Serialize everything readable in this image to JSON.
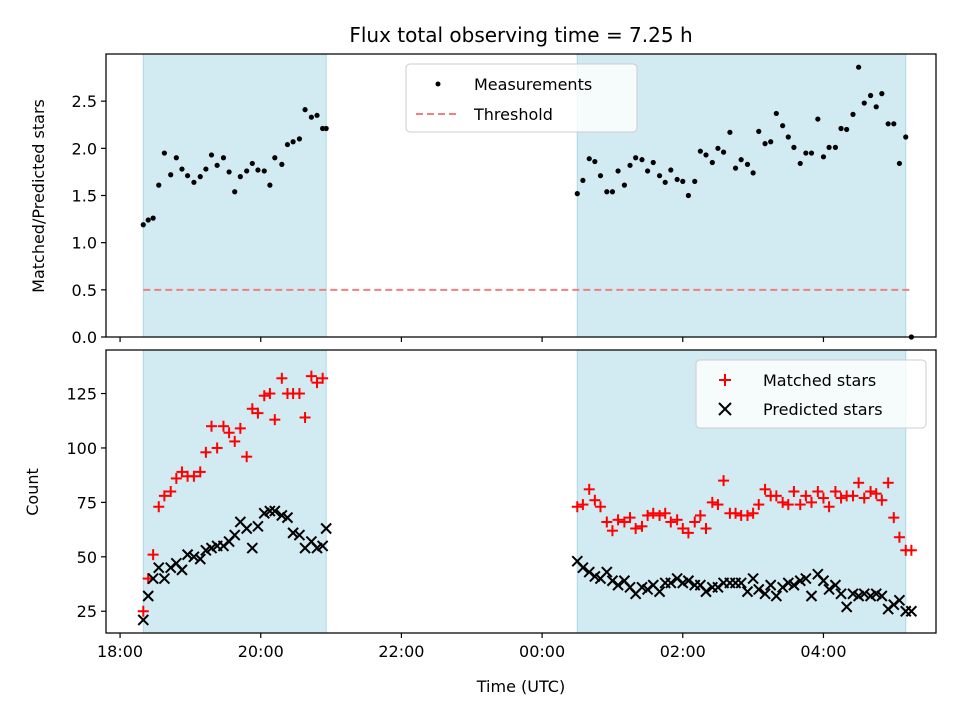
{
  "figure": {
    "title": "Flux total observing time = 7.25 h",
    "xlabel": "Time (UTC)"
  },
  "colors": {
    "shade": "#add8e6",
    "matched": "#ff0000",
    "predicted": "#000000",
    "threshold": "#f08080",
    "measurement": "#000000"
  },
  "x_ticks": [
    {
      "value": 0,
      "label": "18:00"
    },
    {
      "value": 2,
      "label": "20:00"
    },
    {
      "value": 4,
      "label": "22:00"
    },
    {
      "value": 6,
      "label": "00:00"
    },
    {
      "value": 8,
      "label": "02:00"
    },
    {
      "value": 10,
      "label": "04:00"
    }
  ],
  "chart_data": [
    {
      "type": "scatter",
      "panel": "top",
      "title": "Flux total observing time = 7.25 h",
      "xlabel": "",
      "ylabel": "Matched/Predicted stars",
      "x_unit": "hours since 18:00 UTC",
      "xlim": [
        -0.2,
        11.6
      ],
      "ylim": [
        0,
        3.0
      ],
      "yticks": [
        0.0,
        0.5,
        1.0,
        1.5,
        2.0,
        2.5
      ],
      "ytick_labels": [
        "0.0",
        "0.5",
        "1.0",
        "1.5",
        "2.0",
        "2.5"
      ],
      "grid": false,
      "legend_position": "top-center",
      "shaded_intervals": [
        [
          0.33,
          2.93
        ],
        [
          6.5,
          11.17
        ]
      ],
      "series": [
        {
          "name": "Measurements",
          "style": "dots",
          "x": [
            0.33,
            0.4,
            0.47,
            0.55,
            0.63,
            0.72,
            0.8,
            0.88,
            0.96,
            1.05,
            1.14,
            1.22,
            1.3,
            1.38,
            1.47,
            1.55,
            1.63,
            1.71,
            1.8,
            1.88,
            1.96,
            2.05,
            2.13,
            2.2,
            2.3,
            2.38,
            2.46,
            2.55,
            2.63,
            2.72,
            2.8,
            2.88,
            2.93,
            6.5,
            6.58,
            6.67,
            6.75,
            6.83,
            6.92,
            7.0,
            7.08,
            7.17,
            7.25,
            7.33,
            7.42,
            7.5,
            7.58,
            7.67,
            7.75,
            7.83,
            7.92,
            8.0,
            8.08,
            8.17,
            8.25,
            8.33,
            8.42,
            8.5,
            8.58,
            8.67,
            8.75,
            8.83,
            8.92,
            9.0,
            9.08,
            9.17,
            9.25,
            9.33,
            9.42,
            9.5,
            9.58,
            9.67,
            9.75,
            9.83,
            9.92,
            10.0,
            10.08,
            10.17,
            10.25,
            10.33,
            10.42,
            10.5,
            10.58,
            10.67,
            10.75,
            10.83,
            10.92,
            11.0,
            11.08,
            11.17,
            11.25
          ],
          "y": [
            1.19,
            1.24,
            1.26,
            1.61,
            1.95,
            1.72,
            1.9,
            1.78,
            1.71,
            1.64,
            1.7,
            1.78,
            1.93,
            1.82,
            1.9,
            1.75,
            1.54,
            1.7,
            1.76,
            1.84,
            1.77,
            1.76,
            1.61,
            1.9,
            1.83,
            2.04,
            2.07,
            2.1,
            2.41,
            2.33,
            2.35,
            2.21,
            2.21,
            1.52,
            1.66,
            1.89,
            1.86,
            1.71,
            1.54,
            1.54,
            1.76,
            1.61,
            1.82,
            1.9,
            1.88,
            1.76,
            1.85,
            1.71,
            1.64,
            1.77,
            1.67,
            1.65,
            1.5,
            1.65,
            1.97,
            1.93,
            1.85,
            2.0,
            1.96,
            2.17,
            1.79,
            1.88,
            1.83,
            1.74,
            2.18,
            2.05,
            2.07,
            2.37,
            2.24,
            2.12,
            2.01,
            1.84,
            1.95,
            1.95,
            2.31,
            1.91,
            2.01,
            2.01,
            2.21,
            2.2,
            2.36,
            2.86,
            2.48,
            2.56,
            2.44,
            2.58,
            2.26,
            2.26,
            1.84,
            2.12,
            0.0
          ]
        },
        {
          "name": "Threshold",
          "style": "dashed-line",
          "x": [
            0.33,
            11.25
          ],
          "y": [
            0.5,
            0.5
          ]
        }
      ]
    },
    {
      "type": "scatter",
      "panel": "bottom",
      "xlabel": "Time (UTC)",
      "ylabel": "Count",
      "x_unit": "hours since 18:00 UTC",
      "xlim": [
        -0.2,
        11.6
      ],
      "ylim": [
        15,
        145
      ],
      "yticks": [
        25,
        50,
        75,
        100,
        125
      ],
      "ytick_labels": [
        "25",
        "50",
        "75",
        "100",
        "125"
      ],
      "grid": false,
      "legend_position": "top-right",
      "shaded_intervals": [
        [
          0.33,
          2.93
        ],
        [
          6.5,
          11.17
        ]
      ],
      "series": [
        {
          "name": "Matched stars",
          "marker": "plus",
          "x": [
            0.33,
            0.4,
            0.47,
            0.55,
            0.63,
            0.72,
            0.8,
            0.88,
            0.96,
            1.05,
            1.14,
            1.22,
            1.3,
            1.38,
            1.47,
            1.55,
            1.63,
            1.71,
            1.8,
            1.88,
            1.96,
            2.05,
            2.13,
            2.2,
            2.3,
            2.38,
            2.46,
            2.55,
            2.63,
            2.72,
            2.8,
            2.88,
            6.5,
            6.58,
            6.67,
            6.75,
            6.83,
            6.92,
            7.0,
            7.08,
            7.17,
            7.25,
            7.33,
            7.42,
            7.5,
            7.58,
            7.67,
            7.75,
            7.83,
            7.92,
            8.0,
            8.08,
            8.17,
            8.25,
            8.33,
            8.42,
            8.5,
            8.58,
            8.67,
            8.75,
            8.83,
            8.92,
            9.0,
            9.08,
            9.17,
            9.25,
            9.33,
            9.42,
            9.5,
            9.58,
            9.67,
            9.75,
            9.83,
            9.92,
            10.0,
            10.08,
            10.17,
            10.25,
            10.33,
            10.42,
            10.5,
            10.58,
            10.67,
            10.75,
            10.83,
            10.92,
            11.0,
            11.08,
            11.17,
            11.25
          ],
          "y": [
            25,
            40,
            51,
            73,
            78,
            80,
            86,
            89,
            87,
            87,
            89,
            98,
            110,
            100,
            110,
            107,
            103,
            109,
            96,
            118,
            116,
            124,
            125,
            113,
            132,
            125,
            125,
            125,
            114,
            133,
            130,
            132,
            73,
            74,
            81,
            76,
            73,
            66,
            62,
            67,
            66,
            68,
            63,
            64,
            69,
            70,
            69,
            70,
            66,
            67,
            63,
            61,
            66,
            69,
            63,
            75,
            74,
            85,
            70,
            70,
            69,
            69,
            70,
            74,
            81,
            78,
            78,
            75,
            74,
            80,
            74,
            78,
            75,
            80,
            77,
            73,
            80,
            77,
            78,
            78,
            84,
            77,
            80,
            79,
            76,
            84,
            68,
            59,
            53,
            53
          ]
        },
        {
          "name": "Predicted stars",
          "marker": "cross",
          "x": [
            0.33,
            0.4,
            0.47,
            0.55,
            0.63,
            0.72,
            0.8,
            0.88,
            0.96,
            1.05,
            1.14,
            1.22,
            1.3,
            1.38,
            1.47,
            1.55,
            1.63,
            1.71,
            1.8,
            1.88,
            1.96,
            2.05,
            2.13,
            2.2,
            2.3,
            2.38,
            2.46,
            2.55,
            2.63,
            2.72,
            2.8,
            2.88,
            2.93,
            6.5,
            6.58,
            6.67,
            6.75,
            6.83,
            6.92,
            7.0,
            7.08,
            7.17,
            7.25,
            7.33,
            7.42,
            7.5,
            7.58,
            7.67,
            7.75,
            7.83,
            7.92,
            8.0,
            8.08,
            8.17,
            8.25,
            8.33,
            8.42,
            8.5,
            8.58,
            8.67,
            8.75,
            8.83,
            8.92,
            9.0,
            9.08,
            9.17,
            9.25,
            9.33,
            9.42,
            9.5,
            9.58,
            9.67,
            9.75,
            9.83,
            9.92,
            10.0,
            10.08,
            10.17,
            10.25,
            10.33,
            10.42,
            10.5,
            10.58,
            10.67,
            10.75,
            10.83,
            10.92,
            11.0,
            11.08,
            11.17,
            11.25
          ],
          "y": [
            21,
            32,
            40,
            45,
            40,
            45,
            47,
            44,
            51,
            50,
            49,
            53,
            54,
            55,
            55,
            57,
            60,
            66,
            63,
            54,
            64,
            70,
            71,
            71,
            69,
            68,
            61,
            60,
            54,
            57,
            54,
            55,
            63,
            48,
            45,
            43,
            41,
            40,
            43,
            39,
            37,
            39,
            36,
            33,
            36,
            35,
            37,
            34,
            38,
            38,
            40,
            38,
            39,
            37,
            37,
            34,
            36,
            36,
            38,
            38,
            38,
            38,
            34,
            40,
            35,
            33,
            37,
            32,
            36,
            38,
            37,
            39,
            40,
            32,
            42,
            39,
            35,
            37,
            33,
            27,
            33,
            32,
            33,
            32,
            33,
            32,
            26,
            28,
            30,
            25,
            25
          ]
        }
      ]
    }
  ]
}
